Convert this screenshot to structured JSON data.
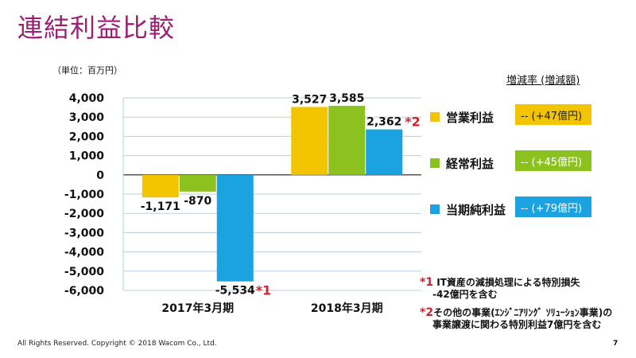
{
  "page": {
    "title": "連結利益比較",
    "unit": "（単位：百万円）",
    "legend_header": "増減率 (増減額)",
    "footer": "All Rights Reserved. Copyright © 2018 Wacom Co., Ltd.",
    "page_number": "7"
  },
  "legend": [
    {
      "label": "営業利益",
      "color": "#f2c500",
      "change": "-- (+47億円)",
      "box_bg": "#f2c500",
      "box_border": "#f2c500",
      "box_text": "#222222"
    },
    {
      "label": "経常利益",
      "color": "#8cc21f",
      "change": "-- (+45億円)",
      "box_bg": "#8cc21f",
      "box_border": "#8cc21f",
      "box_text": "#ffffff"
    },
    {
      "label": "当期純利益",
      "color": "#1aa3e0",
      "change": "-- (+79億円)",
      "box_bg": "#1aa3e0",
      "box_border": "#1aa3e0",
      "box_text": "#ffffff"
    }
  ],
  "notes": [
    {
      "mark": "*1",
      "line1": "IT資産の減損処理による特別損失",
      "line2": "-42億円を含む"
    },
    {
      "mark": "*2",
      "line1": "その他の事業(ｴﾝｼﾞﾆｱﾘﾝｸﾞ ｿﾘｭｰｼｮﾝ事業)の",
      "line2": "事業譲渡に関わる特別利益7億円を含む"
    }
  ],
  "chart_data": {
    "type": "bar",
    "categories": [
      "2017年3月期",
      "2018年3月期"
    ],
    "series": [
      {
        "name": "営業利益",
        "color": "#f2c500",
        "values": [
          -1171,
          3527
        ],
        "labels": [
          "-1,171",
          "3,527"
        ],
        "marks": [
          "",
          ""
        ]
      },
      {
        "name": "経常利益",
        "color": "#8cc21f",
        "values": [
          -870,
          3585
        ],
        "labels": [
          "-870",
          "3,585"
        ],
        "marks": [
          "",
          ""
        ]
      },
      {
        "name": "当期純利益",
        "color": "#1aa3e0",
        "values": [
          -5534,
          2362
        ],
        "labels": [
          "-5,534",
          "2,362"
        ],
        "marks": [
          "*1",
          "*2"
        ]
      }
    ],
    "ylim": [
      -6000,
      4000
    ],
    "yticks": [
      4000,
      3000,
      2000,
      1000,
      0,
      -1000,
      -2000,
      -3000,
      -4000,
      -5000,
      -6000
    ],
    "ytick_labels": [
      "4,000",
      "3,000",
      "2,000",
      "1,000",
      "0",
      "-1,000",
      "-2,000",
      "-3,000",
      "-4,000",
      "-5,000",
      "-6,000"
    ],
    "grid": true
  }
}
